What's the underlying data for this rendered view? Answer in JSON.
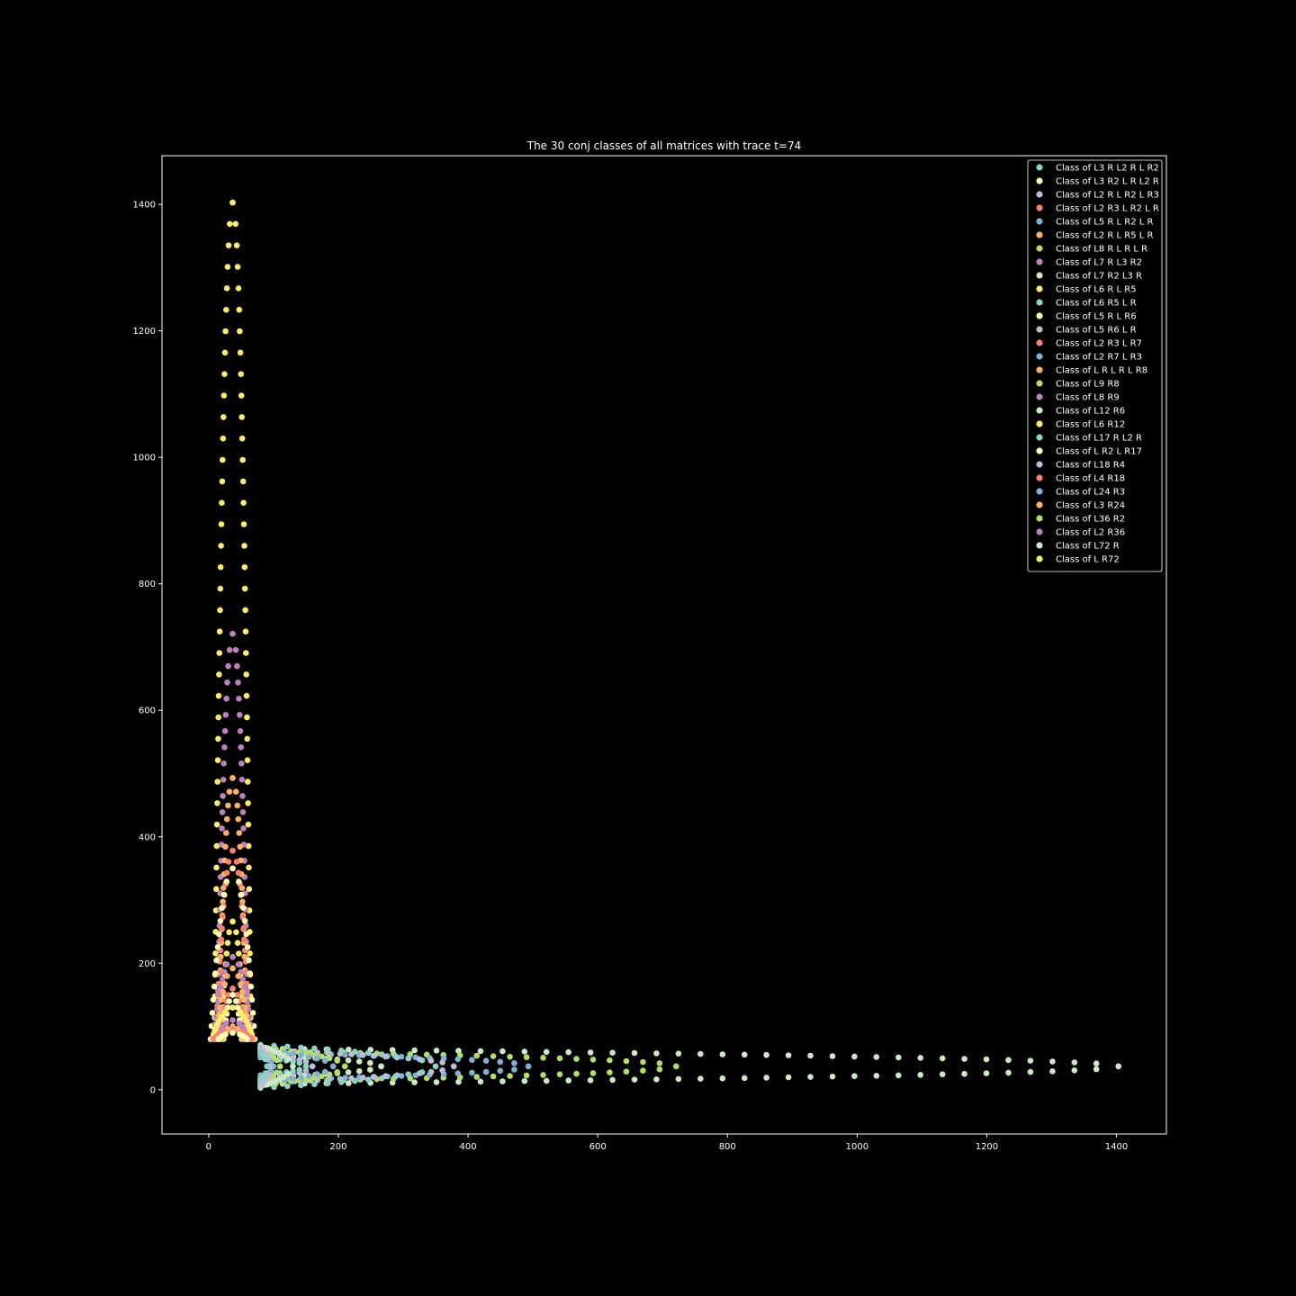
{
  "chart_data": {
    "type": "scatter",
    "title": "The 30 conj classes of all matrices with trace t=74",
    "xlabel": "",
    "ylabel": "",
    "xlim": [
      -72,
      1477
    ],
    "ylim": [
      -70,
      1477
    ],
    "xticks": [
      0,
      200,
      400,
      600,
      800,
      1000,
      1200,
      1400
    ],
    "yticks": [
      0,
      200,
      400,
      600,
      800,
      1000,
      1200,
      1400
    ],
    "grid": false,
    "legend_position": "top-right",
    "background": "#000000",
    "series": [
      {
        "name": "Class of L3 R L2 R L R2",
        "color": "#8dd3c7"
      },
      {
        "name": "Class of L3 R2 L R L2 R",
        "color": "#feffb3"
      },
      {
        "name": "Class of L2 R L R2 L R3",
        "color": "#bfbbd9"
      },
      {
        "name": "Class of L2 R3 L R2 L R",
        "color": "#fa8174"
      },
      {
        "name": "Class of L5 R L R2 L R",
        "color": "#81b1d2"
      },
      {
        "name": "Class of L2 R L R5 L R",
        "color": "#fdb462"
      },
      {
        "name": "Class of L8 R L R L R",
        "color": "#b3de69"
      },
      {
        "name": "Class of L7 R L3 R2",
        "color": "#bc82bd"
      },
      {
        "name": "Class of L7 R2 L3 R",
        "color": "#ccebc4"
      },
      {
        "name": "Class of L6 R L R5",
        "color": "#ffed6f"
      },
      {
        "name": "Class of L6 R5 L R",
        "color": "#8dd3c7"
      },
      {
        "name": "Class of L5 R L R6",
        "color": "#feffb3"
      },
      {
        "name": "Class of L5 R6 L R",
        "color": "#bfbbd9"
      },
      {
        "name": "Class of L2 R3 L R7",
        "color": "#fa8174"
      },
      {
        "name": "Class of L2 R7 L R3",
        "color": "#81b1d2"
      },
      {
        "name": "Class of L R L R L R8",
        "color": "#fdb462"
      },
      {
        "name": "Class of L9 R8",
        "color": "#b3de69"
      },
      {
        "name": "Class of L8 R9",
        "color": "#bc82bd"
      },
      {
        "name": "Class of L12 R6",
        "color": "#ccebc4"
      },
      {
        "name": "Class of L6 R12",
        "color": "#ffed6f"
      },
      {
        "name": "Class of L17 R L2 R",
        "color": "#8dd3c7"
      },
      {
        "name": "Class of L R2 L R17",
        "color": "#feffb3"
      },
      {
        "name": "Class of L18 R4",
        "color": "#bfbbd9"
      },
      {
        "name": "Class of L4 R18",
        "color": "#fa8174"
      },
      {
        "name": "Class of L24 R3",
        "color": "#81b1d2"
      },
      {
        "name": "Class of L3 R24",
        "color": "#fdb462"
      },
      {
        "name": "Class of L36 R2",
        "color": "#b3de69"
      },
      {
        "name": "Class of L2 R36",
        "color": "#bc82bd"
      },
      {
        "name": "Class of L72 R",
        "color": "#ccebc4"
      },
      {
        "name": "Class of L R72",
        "color": "#ffed6f"
      }
    ]
  }
}
